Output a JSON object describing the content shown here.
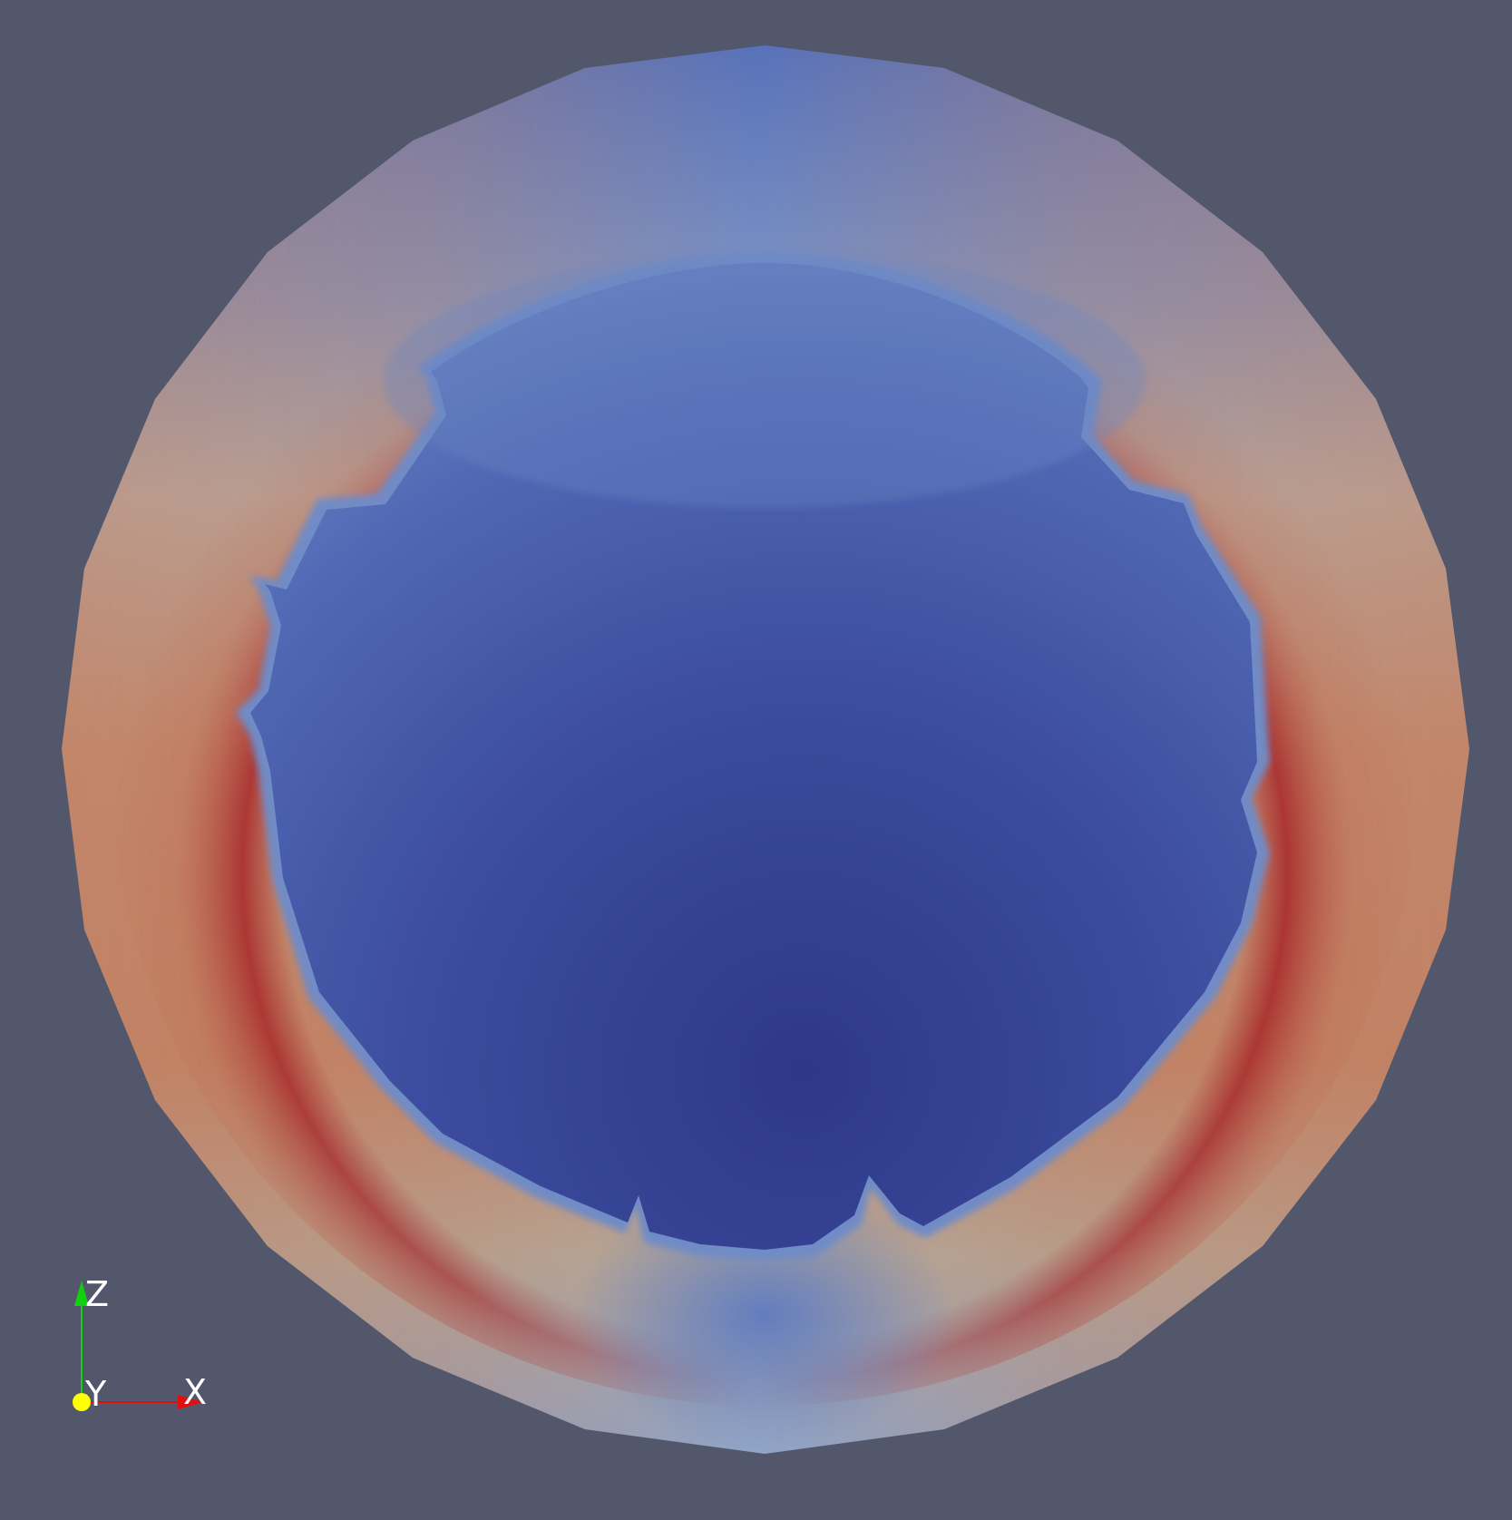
{
  "viewport": {
    "background_color": "#52576b",
    "colormap": {
      "low": "#2f3a8c",
      "mid_low": "#5e7cc4",
      "mid": "#b9b6ab",
      "mid_high": "#c57d62",
      "high": "#a5121c"
    }
  },
  "orientation_axes": {
    "labels": {
      "x": "X",
      "y": "Y",
      "z": "Z"
    },
    "colors": {
      "x": "#e01010",
      "y": "#ffff00",
      "z": "#10d010"
    }
  }
}
